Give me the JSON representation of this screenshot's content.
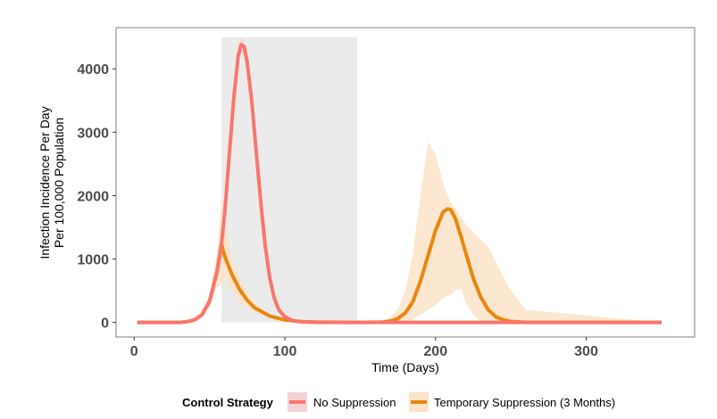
{
  "chart_data": {
    "type": "line",
    "xlabel": "Time (Days)",
    "ylabel_lines": [
      "Infection Incidence Per Day",
      "Per 100,000 Population"
    ],
    "xlim": [
      -12,
      372
    ],
    "ylim": [
      -230,
      4650
    ],
    "xticks": [
      0,
      100,
      200,
      300
    ],
    "yticks": [
      0,
      1000,
      2000,
      3000,
      4000
    ],
    "grid": false,
    "shaded_region": {
      "x": [
        58,
        148
      ],
      "y": [
        0,
        4500
      ],
      "color": "#EBEBEB"
    },
    "legend": {
      "title": "Control Strategy",
      "placement": "bottom"
    },
    "series": [
      {
        "name": "No Suppression",
        "color": "#F8766D",
        "band_color": "#F3D3D6",
        "x": [
          2,
          30,
          35,
          40,
          45,
          50,
          55,
          58,
          60,
          63,
          66,
          69,
          71,
          73,
          75,
          78,
          81,
          84,
          87,
          90,
          93,
          96,
          100,
          105,
          110,
          120,
          200,
          350
        ],
        "y": [
          0,
          0,
          10,
          40,
          120,
          330,
          800,
          1250,
          1700,
          2600,
          3500,
          4200,
          4380,
          4350,
          4100,
          3500,
          2700,
          1900,
          1200,
          700,
          380,
          200,
          90,
          30,
          10,
          0,
          0,
          0
        ],
        "lower": [
          0,
          0,
          5,
          25,
          90,
          260,
          680,
          1100,
          1550,
          2450,
          3350,
          4050,
          4250,
          4230,
          3980,
          3380,
          2580,
          1780,
          1080,
          600,
          300,
          140,
          50,
          10,
          0,
          0,
          0,
          0
        ],
        "upper": [
          0,
          0,
          15,
          60,
          160,
          420,
          950,
          1420,
          1880,
          2780,
          3660,
          4340,
          4480,
          4470,
          4230,
          3640,
          2850,
          2050,
          1350,
          820,
          470,
          270,
          140,
          60,
          25,
          5,
          0,
          0
        ]
      },
      {
        "name": "Temporary Suppression (3 Months)",
        "color": "#E8870E",
        "band_color": "#FBE3C8",
        "x": [
          2,
          30,
          35,
          40,
          45,
          50,
          55,
          58,
          60,
          65,
          70,
          75,
          80,
          90,
          100,
          110,
          120,
          150,
          165,
          170,
          175,
          180,
          185,
          190,
          195,
          200,
          205,
          208,
          210,
          213,
          217,
          220,
          225,
          230,
          235,
          240,
          245,
          250,
          260,
          350
        ],
        "y": [
          0,
          0,
          10,
          40,
          120,
          330,
          800,
          1230,
          1050,
          750,
          520,
          350,
          230,
          100,
          40,
          15,
          5,
          0,
          5,
          20,
          60,
          150,
          330,
          650,
          1050,
          1450,
          1740,
          1790,
          1780,
          1650,
          1350,
          1100,
          700,
          400,
          200,
          90,
          40,
          15,
          0,
          0
        ],
        "lower": [
          0,
          0,
          5,
          20,
          80,
          250,
          550,
          600,
          700,
          480,
          330,
          230,
          150,
          60,
          20,
          5,
          0,
          0,
          0,
          0,
          5,
          20,
          50,
          120,
          200,
          280,
          380,
          420,
          430,
          500,
          540,
          300,
          120,
          30,
          5,
          0,
          0,
          0,
          0,
          0
        ],
        "upper": [
          0,
          0,
          15,
          60,
          150,
          400,
          1100,
          1950,
          1600,
          1000,
          700,
          480,
          300,
          120,
          50,
          25,
          10,
          0,
          30,
          80,
          200,
          500,
          1100,
          2000,
          2850,
          2650,
          2200,
          2000,
          1900,
          1800,
          1650,
          1550,
          1420,
          1300,
          1200,
          950,
          720,
          500,
          200,
          0
        ]
      }
    ]
  }
}
